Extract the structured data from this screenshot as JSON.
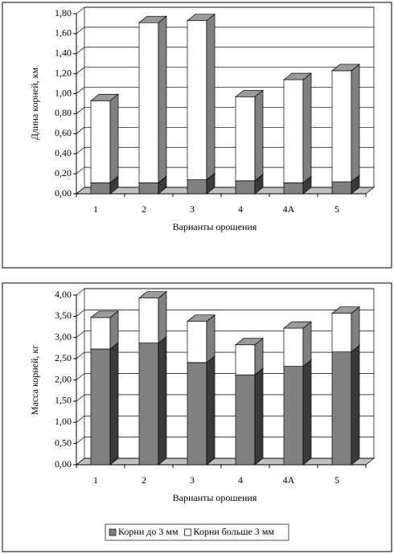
{
  "chart_data": [
    {
      "type": "bar",
      "stacked": true,
      "three_d": true,
      "y_label": "Длина корней, км",
      "x_label": "Варианты орошения",
      "categories": [
        "1",
        "2",
        "3",
        "4",
        "4А",
        "5"
      ],
      "series": [
        {
          "color": "#808080",
          "values": [
            0.11,
            0.11,
            0.14,
            0.13,
            0.11,
            0.12
          ]
        },
        {
          "color": "#ffffff",
          "values": [
            0.82,
            1.6,
            1.59,
            0.84,
            1.03,
            1.11
          ]
        }
      ],
      "ylim": [
        0,
        1.8
      ],
      "yticks": [
        {
          "value": 0,
          "label": "0,00"
        },
        {
          "value": 0.2,
          "label": "0,20"
        },
        {
          "value": 0.4,
          "label": "0,40"
        },
        {
          "value": 0.6,
          "label": "0,60"
        },
        {
          "value": 0.8,
          "label": "0,80"
        },
        {
          "value": 1.0,
          "label": "1,00"
        },
        {
          "value": 1.2,
          "label": "1,20"
        },
        {
          "value": 1.4,
          "label": "1,40"
        },
        {
          "value": 1.6,
          "label": "1,60"
        },
        {
          "value": 1.8,
          "label": "1,80"
        }
      ],
      "grid": true
    },
    {
      "type": "bar",
      "stacked": true,
      "three_d": true,
      "y_label": "Масса корней, кг",
      "x_label": "Варианты орошения",
      "categories": [
        "1",
        "2",
        "3",
        "4",
        "4А",
        "5"
      ],
      "series": [
        {
          "name": "Корни до 3 мм",
          "color": "#808080",
          "values": [
            2.73,
            2.87,
            2.41,
            2.12,
            2.32,
            2.66
          ]
        },
        {
          "name": "Корни больше 3 мм",
          "color": "#ffffff",
          "values": [
            0.74,
            1.06,
            0.97,
            0.71,
            0.9,
            0.91
          ]
        }
      ],
      "ylim": [
        0,
        4
      ],
      "yticks": [
        {
          "value": 0,
          "label": "0,00"
        },
        {
          "value": 0.5,
          "label": "0,50"
        },
        {
          "value": 1.0,
          "label": "1,00"
        },
        {
          "value": 1.5,
          "label": "1,50"
        },
        {
          "value": 2.0,
          "label": "2,00"
        },
        {
          "value": 2.5,
          "label": "2,50"
        },
        {
          "value": 3.0,
          "label": "3,00"
        },
        {
          "value": 3.5,
          "label": "3,50"
        },
        {
          "value": 4.0,
          "label": "4,00"
        }
      ],
      "grid": true,
      "legend": "bottom"
    }
  ]
}
